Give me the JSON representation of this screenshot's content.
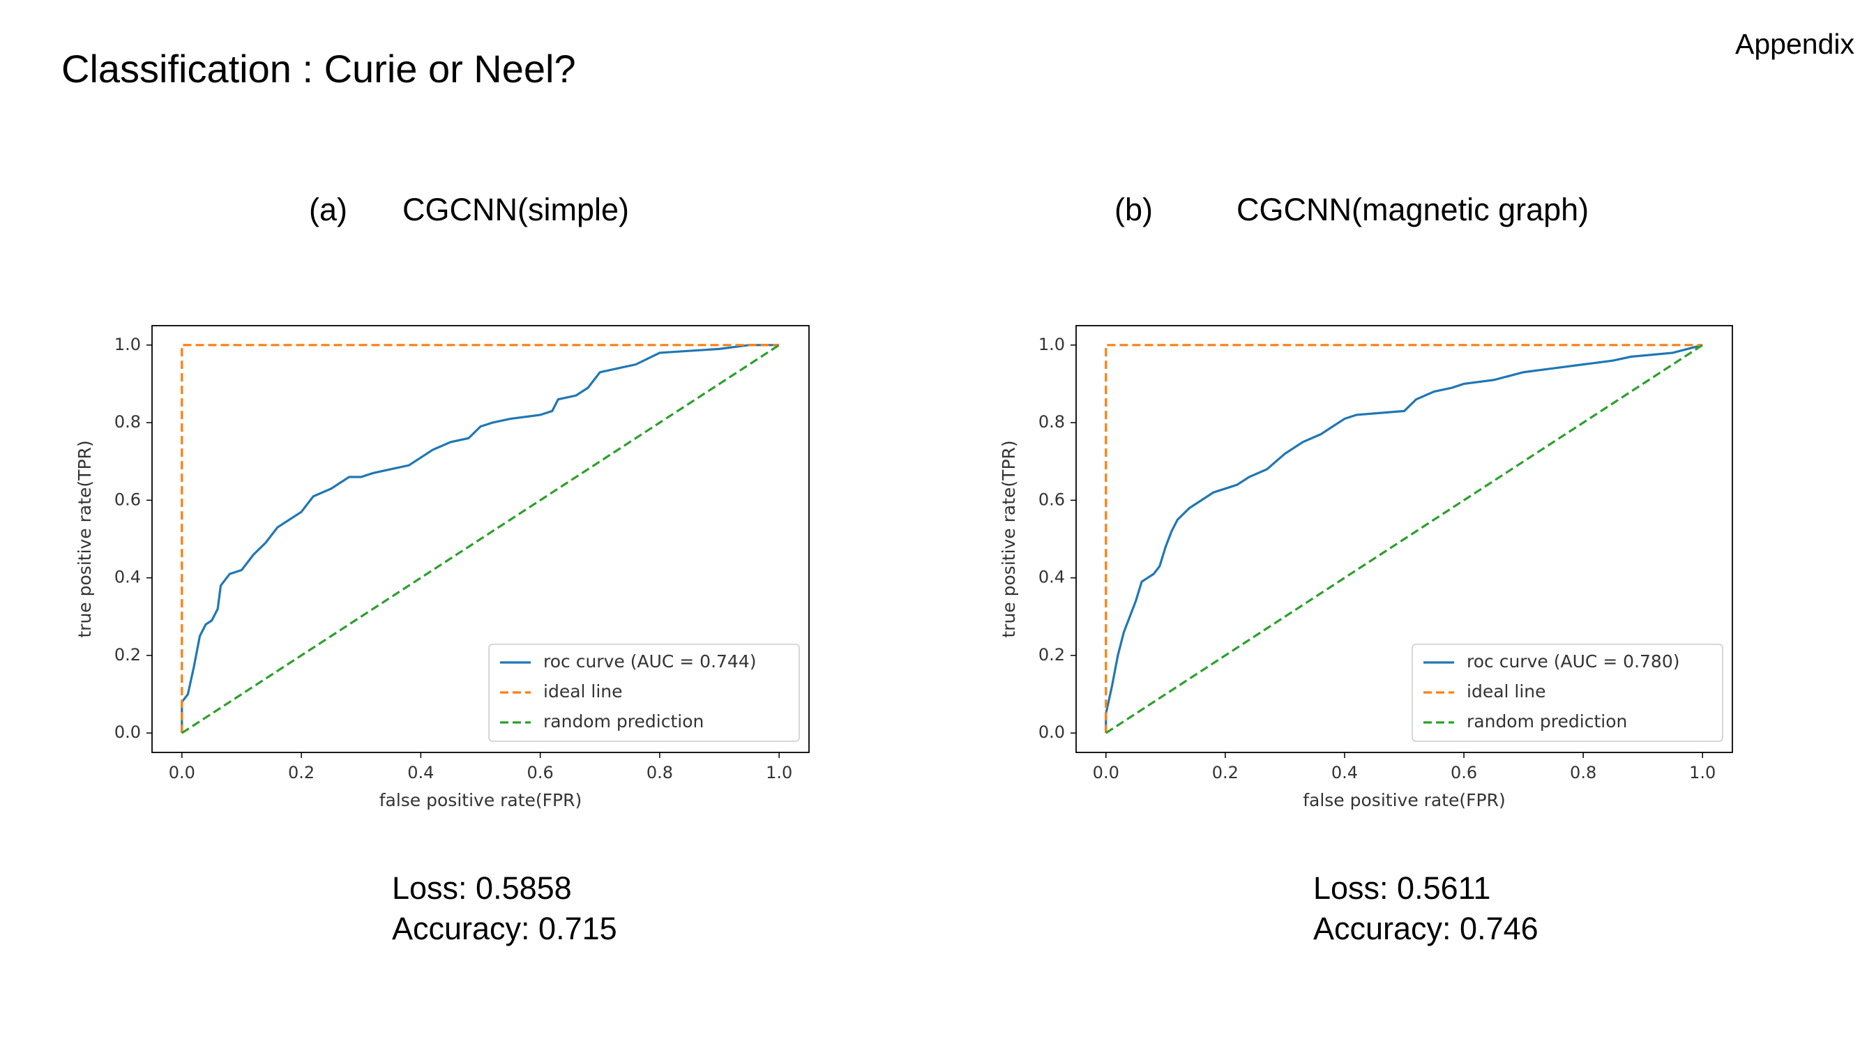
{
  "title": "Classification : Curie or Neel?",
  "corner_label": "Appendix",
  "chart_data": [
    {
      "type": "line",
      "panel": "(a)",
      "title": "CGCNN(simple)",
      "xlabel": "false positive rate(FPR)",
      "ylabel": "true positive rate(TPR)",
      "xlim": [
        -0.05,
        1.05
      ],
      "ylim": [
        -0.05,
        1.05
      ],
      "xticks": [
        {
          "value": 0,
          "label": "0.0"
        },
        {
          "value": 0.2,
          "label": "0.2"
        },
        {
          "value": 0.4,
          "label": "0.4"
        },
        {
          "value": 0.6,
          "label": "0.6"
        },
        {
          "value": 0.8,
          "label": "0.8"
        },
        {
          "value": 1,
          "label": "1.0"
        }
      ],
      "yticks": [
        {
          "value": 0,
          "label": "0.0"
        },
        {
          "value": 0.2,
          "label": "0.2"
        },
        {
          "value": 0.4,
          "label": "0.4"
        },
        {
          "value": 0.6,
          "label": "0.6"
        },
        {
          "value": 0.8,
          "label": "0.8"
        },
        {
          "value": 1,
          "label": "1.0"
        }
      ],
      "legend": "lower right",
      "grid": false,
      "series": [
        {
          "name": "roc curve (AUC = 0.744)",
          "color": "#1f77b4",
          "linestyle": "solid",
          "x": [
            0,
            0,
            0.01,
            0.02,
            0.03,
            0.04,
            0.05,
            0.06,
            0.065,
            0.08,
            0.1,
            0.12,
            0.14,
            0.16,
            0.18,
            0.2,
            0.22,
            0.25,
            0.28,
            0.3,
            0.32,
            0.35,
            0.38,
            0.4,
            0.42,
            0.45,
            0.48,
            0.5,
            0.52,
            0.55,
            0.6,
            0.62,
            0.63,
            0.66,
            0.68,
            0.7,
            0.73,
            0.76,
            0.8,
            0.9,
            0.95,
            1
          ],
          "values": [
            0,
            0.08,
            0.1,
            0.17,
            0.25,
            0.28,
            0.29,
            0.32,
            0.38,
            0.41,
            0.42,
            0.46,
            0.49,
            0.53,
            0.55,
            0.57,
            0.61,
            0.63,
            0.66,
            0.66,
            0.67,
            0.68,
            0.69,
            0.71,
            0.73,
            0.75,
            0.76,
            0.79,
            0.8,
            0.81,
            0.82,
            0.83,
            0.86,
            0.87,
            0.89,
            0.93,
            0.94,
            0.95,
            0.98,
            0.99,
            1,
            1
          ]
        },
        {
          "name": "ideal line",
          "color": "#ff7f0e",
          "linestyle": "dashed",
          "x": [
            0,
            0,
            1
          ],
          "values": [
            0,
            1,
            1
          ]
        },
        {
          "name": "random prediction",
          "color": "#2ca02c",
          "linestyle": "dashed",
          "x": [
            0,
            1
          ],
          "values": [
            0,
            1
          ]
        }
      ],
      "notes": [
        "Loss: 0.5858",
        "Accuracy: 0.715"
      ]
    },
    {
      "type": "line",
      "panel": "(b)",
      "title": "CGCNN(magnetic graph)",
      "xlabel": "false positive rate(FPR)",
      "ylabel": "true positive rate(TPR)",
      "xlim": [
        -0.05,
        1.05
      ],
      "ylim": [
        -0.05,
        1.05
      ],
      "xticks": [
        {
          "value": 0,
          "label": "0.0"
        },
        {
          "value": 0.2,
          "label": "0.2"
        },
        {
          "value": 0.4,
          "label": "0.4"
        },
        {
          "value": 0.6,
          "label": "0.6"
        },
        {
          "value": 0.8,
          "label": "0.8"
        },
        {
          "value": 1,
          "label": "1.0"
        }
      ],
      "yticks": [
        {
          "value": 0,
          "label": "0.0"
        },
        {
          "value": 0.2,
          "label": "0.2"
        },
        {
          "value": 0.4,
          "label": "0.4"
        },
        {
          "value": 0.6,
          "label": "0.6"
        },
        {
          "value": 0.8,
          "label": "0.8"
        },
        {
          "value": 1,
          "label": "1.0"
        }
      ],
      "legend": "lower right",
      "grid": false,
      "series": [
        {
          "name": "roc curve (AUC = 0.780)",
          "color": "#1f77b4",
          "linestyle": "solid",
          "x": [
            0,
            0,
            0.01,
            0.02,
            0.03,
            0.04,
            0.05,
            0.06,
            0.08,
            0.09,
            0.1,
            0.11,
            0.12,
            0.14,
            0.16,
            0.18,
            0.2,
            0.22,
            0.24,
            0.27,
            0.3,
            0.33,
            0.36,
            0.38,
            0.4,
            0.42,
            0.5,
            0.52,
            0.55,
            0.58,
            0.6,
            0.65,
            0.7,
            0.75,
            0.8,
            0.85,
            0.88,
            0.95,
            1
          ],
          "values": [
            0,
            0.05,
            0.12,
            0.2,
            0.26,
            0.3,
            0.34,
            0.39,
            0.41,
            0.43,
            0.48,
            0.52,
            0.55,
            0.58,
            0.6,
            0.62,
            0.63,
            0.64,
            0.66,
            0.68,
            0.72,
            0.75,
            0.77,
            0.79,
            0.81,
            0.82,
            0.83,
            0.86,
            0.88,
            0.89,
            0.9,
            0.91,
            0.93,
            0.94,
            0.95,
            0.96,
            0.97,
            0.98,
            1
          ]
        },
        {
          "name": "ideal line",
          "color": "#ff7f0e",
          "linestyle": "dashed",
          "x": [
            0,
            0,
            1
          ],
          "values": [
            0,
            1,
            1
          ]
        },
        {
          "name": "random prediction",
          "color": "#2ca02c",
          "linestyle": "dashed",
          "x": [
            0,
            1
          ],
          "values": [
            0,
            1
          ]
        }
      ],
      "notes": [
        "Loss: 0.5611",
        "Accuracy: 0.746"
      ]
    }
  ]
}
